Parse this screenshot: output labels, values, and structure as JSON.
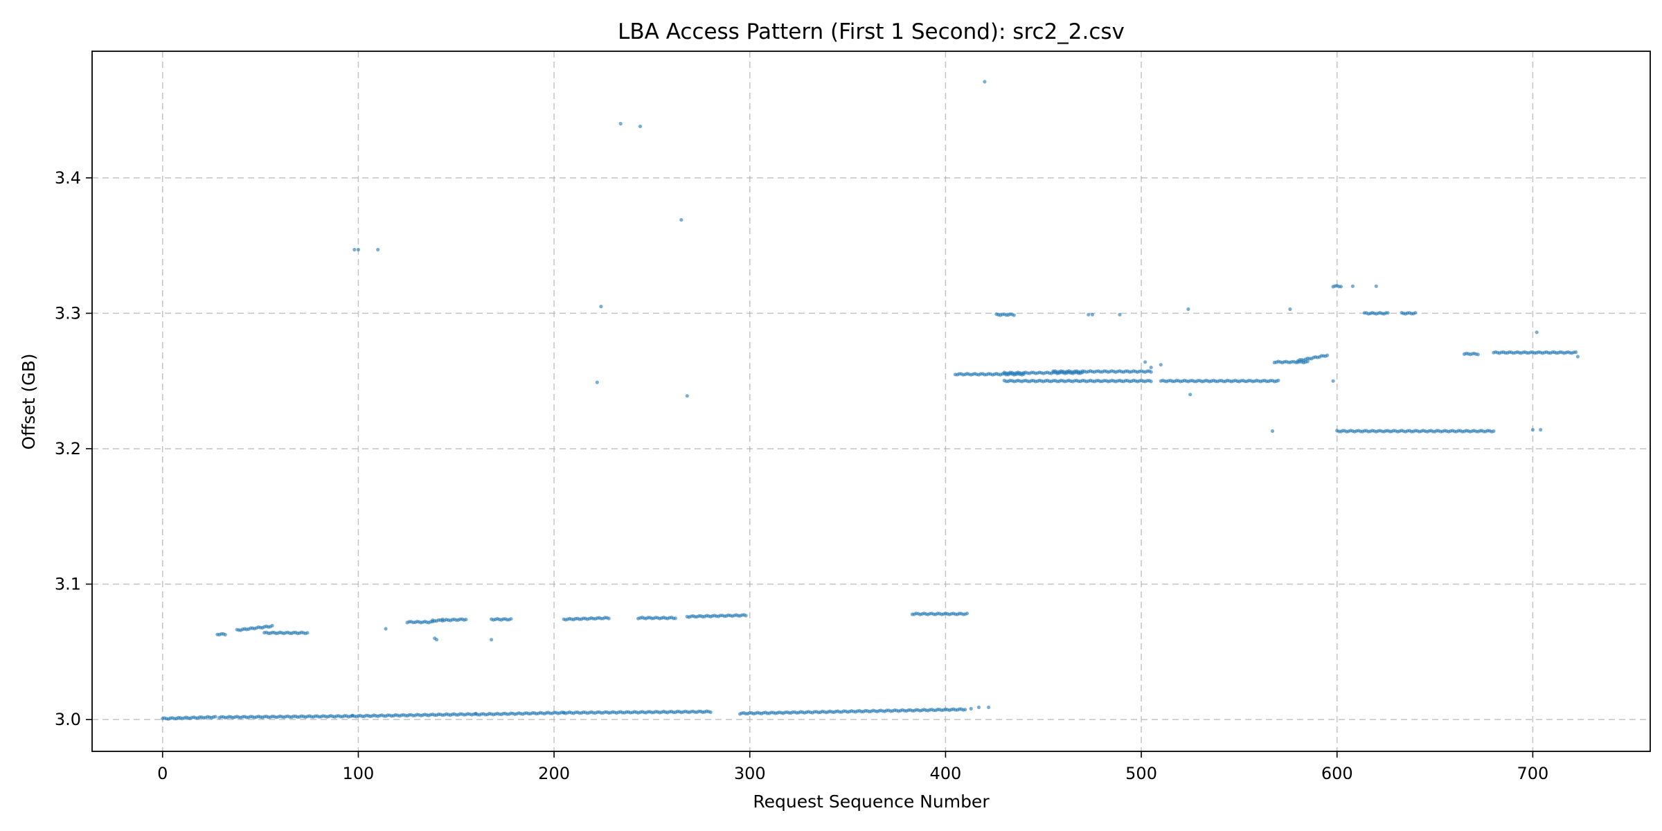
{
  "chart_data": {
    "type": "scatter",
    "title": "LBA Access Pattern (First 1 Second): src2_2.csv",
    "xlabel": "Request Sequence Number",
    "ylabel": "Offset (GB)",
    "xlim": [
      -36,
      760
    ],
    "ylim": [
      2.9765,
      3.4935
    ],
    "xticks": [
      0,
      100,
      200,
      300,
      400,
      500,
      600,
      700
    ],
    "yticks": [
      3.0,
      3.1,
      3.2,
      3.3,
      3.4
    ],
    "grid": true,
    "marker_color": "#1f77b4",
    "runs": [
      [
        0,
        27,
        3.0007,
        3.0018
      ],
      [
        29,
        97,
        3.0017,
        3.0025
      ],
      [
        97,
        160,
        3.0025,
        3.004
      ],
      [
        160,
        205,
        3.0038,
        3.005
      ],
      [
        205,
        280,
        3.005,
        3.0058
      ],
      [
        295,
        410,
        3.0045,
        3.0075
      ],
      [
        28,
        32,
        3.063,
        3.063
      ],
      [
        38,
        56,
        3.066,
        3.069
      ],
      [
        52,
        74,
        3.064,
        3.064
      ],
      [
        125,
        138,
        3.072,
        3.072
      ],
      [
        138,
        155,
        3.073,
        3.074
      ],
      [
        168,
        178,
        3.074,
        3.074
      ],
      [
        205,
        228,
        3.074,
        3.075
      ],
      [
        243,
        262,
        3.075,
        3.075
      ],
      [
        268,
        298,
        3.076,
        3.077
      ],
      [
        383,
        411,
        3.078,
        3.078
      ],
      [
        405,
        440,
        3.255,
        3.255
      ],
      [
        430,
        470,
        3.256,
        3.256
      ],
      [
        455,
        505,
        3.257,
        3.257
      ],
      [
        430,
        505,
        3.25,
        3.25
      ],
      [
        510,
        570,
        3.25,
        3.25
      ],
      [
        568,
        585,
        3.264,
        3.264
      ],
      [
        580,
        595,
        3.265,
        3.269
      ],
      [
        600,
        680,
        3.213,
        3.213
      ],
      [
        665,
        672,
        3.27,
        3.27
      ],
      [
        680,
        722,
        3.271,
        3.271
      ],
      [
        426,
        435,
        3.299,
        3.299
      ],
      [
        598,
        602,
        3.32,
        3.32
      ],
      [
        614,
        626,
        3.3,
        3.3
      ],
      [
        633,
        640,
        3.3,
        3.3
      ]
    ],
    "points": [
      [
        98,
        3.347
      ],
      [
        100,
        3.347
      ],
      [
        110,
        3.347
      ],
      [
        114,
        3.067
      ],
      [
        139,
        3.06
      ],
      [
        140,
        3.059
      ],
      [
        143,
        3.074
      ],
      [
        168,
        3.059
      ],
      [
        222,
        3.249
      ],
      [
        224,
        3.305
      ],
      [
        234,
        3.44
      ],
      [
        244,
        3.438
      ],
      [
        265,
        3.369
      ],
      [
        268,
        3.239
      ],
      [
        420,
        3.471
      ],
      [
        413,
        3.008
      ],
      [
        417,
        3.009
      ],
      [
        422,
        3.009
      ],
      [
        473,
        3.299
      ],
      [
        475,
        3.299
      ],
      [
        489,
        3.299
      ],
      [
        502,
        3.264
      ],
      [
        505,
        3.26
      ],
      [
        510,
        3.262
      ],
      [
        524,
        3.303
      ],
      [
        525,
        3.24
      ],
      [
        567,
        3.213
      ],
      [
        576,
        3.303
      ],
      [
        598,
        3.25
      ],
      [
        608,
        3.32
      ],
      [
        620,
        3.32
      ],
      [
        700,
        3.214
      ],
      [
        704,
        3.214
      ],
      [
        702,
        3.286
      ],
      [
        723,
        3.268
      ]
    ]
  }
}
